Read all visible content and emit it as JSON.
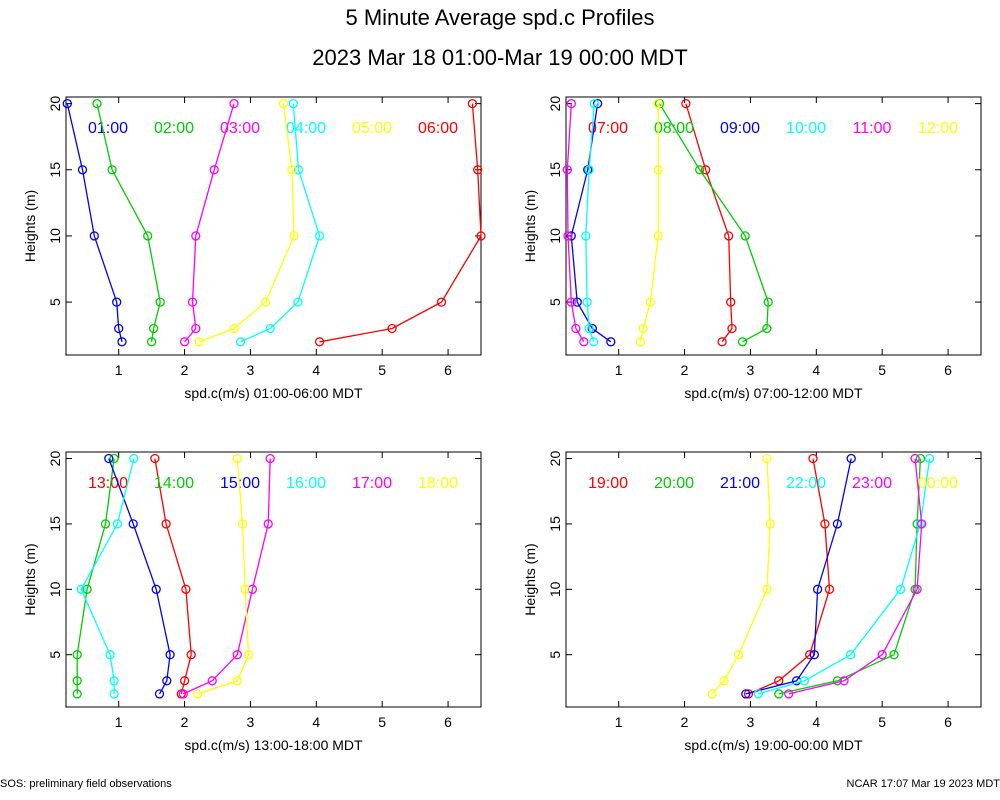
{
  "header": {
    "title": "5 Minute Average spd.c Profiles",
    "subtitle": "2023 Mar 18 01:00-Mar 19 00:00 MDT"
  },
  "footer": {
    "left": "SOS: preliminary field observations",
    "right": "NCAR 17:07 Mar 19 2023 MDT"
  },
  "chart_data": [
    {
      "type": "line",
      "xlabel": "spd.c(m/s) 01:00-06:00 MDT",
      "ylabel": "Heights (m)",
      "xlim": [
        0.2,
        6.5
      ],
      "ylim": [
        1,
        20.5
      ],
      "xticks": [
        1,
        2,
        3,
        4,
        5,
        6
      ],
      "yticks": [
        5,
        10,
        15,
        20
      ],
      "heights": [
        2,
        3,
        5,
        10,
        15,
        20
      ],
      "series": [
        {
          "name": "01:00",
          "color": "#0000ff",
          "values": [
            1.05,
            1.0,
            0.97,
            0.63,
            0.45,
            0.22
          ]
        },
        {
          "name": "02:00",
          "color": "#00cc00",
          "values": [
            1.5,
            1.53,
            1.63,
            1.44,
            0.9,
            0.67
          ]
        },
        {
          "name": "03:00",
          "color": "#ff00ff",
          "values": [
            2.0,
            2.17,
            2.12,
            2.17,
            2.45,
            2.75
          ]
        },
        {
          "name": "04:00",
          "color": "#00ffff",
          "values": [
            2.85,
            3.3,
            3.72,
            4.05,
            3.73,
            3.65
          ]
        },
        {
          "name": "05:00",
          "color": "#ffff00",
          "values": [
            2.22,
            2.75,
            3.23,
            3.66,
            3.63,
            3.5
          ]
        },
        {
          "name": "06:00",
          "color": "#ff0000",
          "values": [
            4.05,
            5.15,
            5.9,
            6.5,
            6.45,
            6.37
          ]
        }
      ]
    },
    {
      "type": "line",
      "xlabel": "spd.c(m/s) 07:00-12:00 MDT",
      "ylabel": "Heights (m)",
      "xlim": [
        0.2,
        6.5
      ],
      "ylim": [
        1,
        20.5
      ],
      "xticks": [
        1,
        2,
        3,
        4,
        5,
        6
      ],
      "yticks": [
        5,
        10,
        15,
        20
      ],
      "heights": [
        2,
        3,
        5,
        10,
        15,
        20
      ],
      "series": [
        {
          "name": "07:00",
          "color": "#ff0000",
          "values": [
            2.57,
            2.72,
            2.7,
            2.67,
            2.32,
            2.02
          ]
        },
        {
          "name": "08:00",
          "color": "#00cc00",
          "values": [
            2.88,
            3.25,
            3.27,
            2.92,
            2.23,
            1.62
          ]
        },
        {
          "name": "09:00",
          "color": "#0000ff",
          "values": [
            0.88,
            0.6,
            0.37,
            0.28,
            0.53,
            0.68
          ]
        },
        {
          "name": "10:00",
          "color": "#00ffff",
          "values": [
            0.62,
            0.55,
            0.52,
            0.5,
            0.55,
            0.63
          ]
        },
        {
          "name": "11:00",
          "color": "#ff00ff",
          "values": [
            0.47,
            0.35,
            0.28,
            0.23,
            0.22,
            0.28
          ]
        },
        {
          "name": "12:00",
          "color": "#ffff00",
          "values": [
            1.33,
            1.37,
            1.48,
            1.6,
            1.6,
            1.6
          ]
        }
      ]
    },
    {
      "type": "line",
      "xlabel": "spd.c(m/s) 13:00-18:00 MDT",
      "ylabel": "Heights (m)",
      "xlim": [
        0.2,
        6.5
      ],
      "ylim": [
        1,
        20.5
      ],
      "xticks": [
        1,
        2,
        3,
        4,
        5,
        6
      ],
      "yticks": [
        5,
        10,
        15,
        20
      ],
      "heights": [
        2,
        3,
        5,
        10,
        15,
        20
      ],
      "series": [
        {
          "name": "13:00",
          "color": "#ff0000",
          "values": [
            1.95,
            2.0,
            2.1,
            2.02,
            1.72,
            1.55
          ]
        },
        {
          "name": "14:00",
          "color": "#00cc00",
          "values": [
            0.37,
            0.37,
            0.37,
            0.52,
            0.8,
            0.93
          ]
        },
        {
          "name": "15:00",
          "color": "#0000ff",
          "values": [
            1.62,
            1.73,
            1.78,
            1.57,
            1.22,
            0.85
          ]
        },
        {
          "name": "16:00",
          "color": "#00ffff",
          "values": [
            0.93,
            0.93,
            0.87,
            0.43,
            0.98,
            1.23
          ]
        },
        {
          "name": "17:00",
          "color": "#ff00ff",
          "values": [
            1.98,
            2.42,
            2.8,
            3.03,
            3.27,
            3.3
          ]
        },
        {
          "name": "18:00",
          "color": "#ffff00",
          "values": [
            2.2,
            2.8,
            2.97,
            2.92,
            2.88,
            2.8
          ]
        }
      ]
    },
    {
      "type": "line",
      "xlabel": "spd.c(m/s) 19:00-00:00 MDT",
      "ylabel": "Heights (m)",
      "xlim": [
        0.2,
        6.5
      ],
      "ylim": [
        1,
        20.5
      ],
      "xticks": [
        1,
        2,
        3,
        4,
        5,
        6
      ],
      "yticks": [
        5,
        10,
        15,
        20
      ],
      "heights": [
        2,
        3,
        5,
        10,
        15,
        20
      ],
      "series": [
        {
          "name": "19:00",
          "color": "#ff0000",
          "values": [
            2.97,
            3.43,
            3.9,
            4.2,
            4.13,
            3.95
          ]
        },
        {
          "name": "20:00",
          "color": "#00cc00",
          "values": [
            3.43,
            4.32,
            5.18,
            5.5,
            5.53,
            5.58
          ]
        },
        {
          "name": "21:00",
          "color": "#0000ff",
          "values": [
            2.93,
            3.7,
            3.97,
            4.02,
            4.32,
            4.53
          ]
        },
        {
          "name": "22:00",
          "color": "#00ffff",
          "values": [
            3.12,
            3.82,
            4.52,
            5.28,
            5.58,
            5.72
          ]
        },
        {
          "name": "23:00",
          "color": "#ff00ff",
          "values": [
            3.58,
            4.42,
            5.0,
            5.53,
            5.6,
            5.5
          ]
        },
        {
          "name": "00:00",
          "color": "#ffff00",
          "values": [
            2.42,
            2.6,
            2.82,
            3.25,
            3.3,
            3.25
          ]
        }
      ]
    }
  ]
}
